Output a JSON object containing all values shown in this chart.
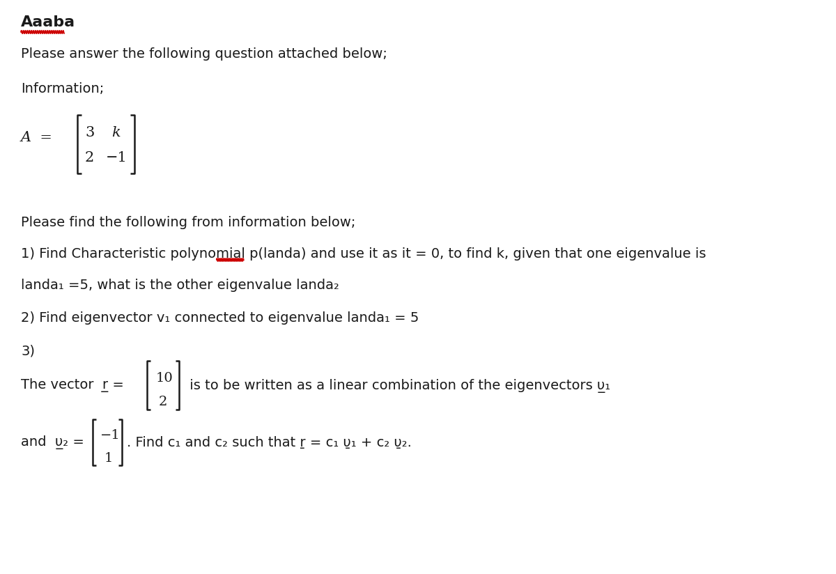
{
  "title": "Aaaba",
  "line1": "Please answer the following question attached below;",
  "line2": "Information;",
  "line3": "Please find the following from information below;",
  "q1_line1": "1) Find Characteristic polynomial p(landa) and use it as it = 0, to find k, given that one eigenvalue is",
  "q1_line2": "landa₁ =5, what is the other eigenvalue landa₂",
  "q2": "2) Find eigenvector v₁ connected to eigenvalue landa₁ = 5",
  "q3": "3)",
  "vec_r_prefix": "The vector ",
  "vec_r_entries": [
    "10",
    "2"
  ],
  "vec_r_suffix": " is to be written as a linear combination of the eigenvectors υ̱₁",
  "and_v2_prefix": "and υ̱₂ =",
  "vec_v2_entries": [
    "-1",
    "1"
  ],
  "find_c_text": ". Find c₁ and c₂ such that ṟ = c₁ υ̱₁ + c₂ υ̱₂.",
  "bg_color": "#ffffff",
  "text_color": "#1a1a1a",
  "red_color": "#cc0000",
  "matrix_A_row1": [
    "3",
    "k"
  ],
  "matrix_A_row2": [
    "2",
    "-1"
  ],
  "fig_width": 12.0,
  "fig_height": 8.24,
  "dpi": 100
}
